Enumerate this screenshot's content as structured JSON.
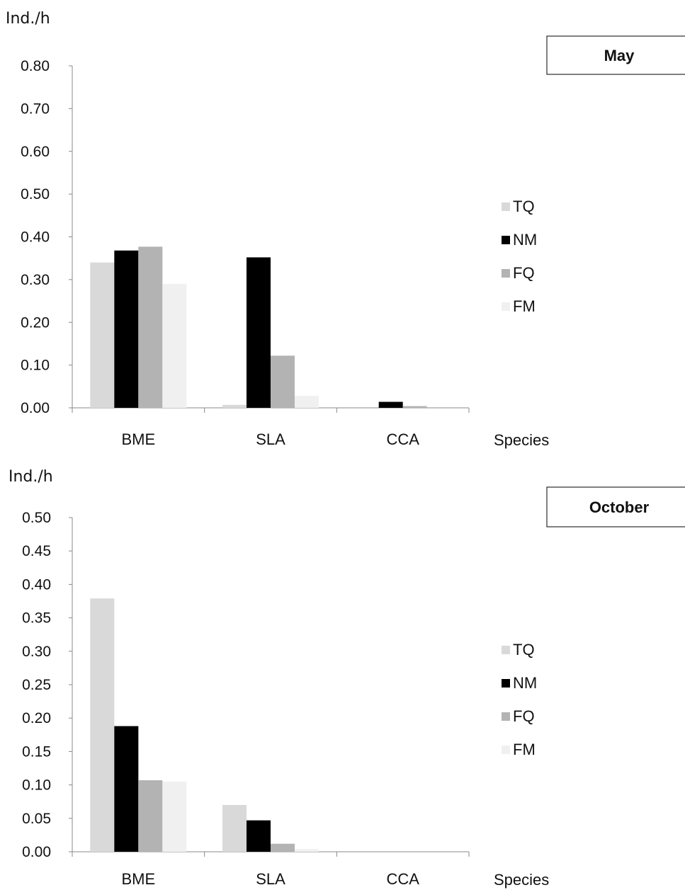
{
  "chart_data": [
    {
      "type": "bar",
      "title": "May",
      "ylabel": "Ind./h",
      "xlabel": "Species",
      "categories": [
        "BME",
        "SLA",
        "CCA"
      ],
      "ylim": [
        0,
        0.8
      ],
      "yticks": [
        "0.00",
        "0.10",
        "0.20",
        "0.30",
        "0.40",
        "0.50",
        "0.60",
        "0.70",
        "0.80"
      ],
      "series": [
        {
          "name": "TQ",
          "values": [
            0.34,
            0.007,
            0.0
          ],
          "color": "#d9d9d9"
        },
        {
          "name": "NM",
          "values": [
            0.368,
            0.352,
            0.014
          ],
          "color": "#000000"
        },
        {
          "name": "FQ",
          "values": [
            0.377,
            0.122,
            0.004
          ],
          "color": "#b3b3b3"
        },
        {
          "name": "FM",
          "values": [
            0.29,
            0.028,
            0.0
          ],
          "color": "#f0f0f0"
        }
      ],
      "legend_position": "right",
      "grid": false
    },
    {
      "type": "bar",
      "title": "October",
      "ylabel": "Ind./h",
      "xlabel": "Species",
      "categories": [
        "BME",
        "SLA",
        "CCA"
      ],
      "ylim": [
        0,
        0.5
      ],
      "yticks": [
        "0.00",
        "0.05",
        "0.10",
        "0.15",
        "0.20",
        "0.25",
        "0.30",
        "0.35",
        "0.40",
        "0.45",
        "0.50"
      ],
      "series": [
        {
          "name": "TQ",
          "values": [
            0.379,
            0.07,
            0.0
          ],
          "color": "#d9d9d9"
        },
        {
          "name": "NM",
          "values": [
            0.188,
            0.047,
            0.0
          ],
          "color": "#000000"
        },
        {
          "name": "FQ",
          "values": [
            0.107,
            0.012,
            0.0
          ],
          "color": "#b3b3b3"
        },
        {
          "name": "FM",
          "values": [
            0.105,
            0.004,
            0.0
          ],
          "color": "#f0f0f0"
        }
      ],
      "legend_position": "right",
      "grid": false
    }
  ]
}
